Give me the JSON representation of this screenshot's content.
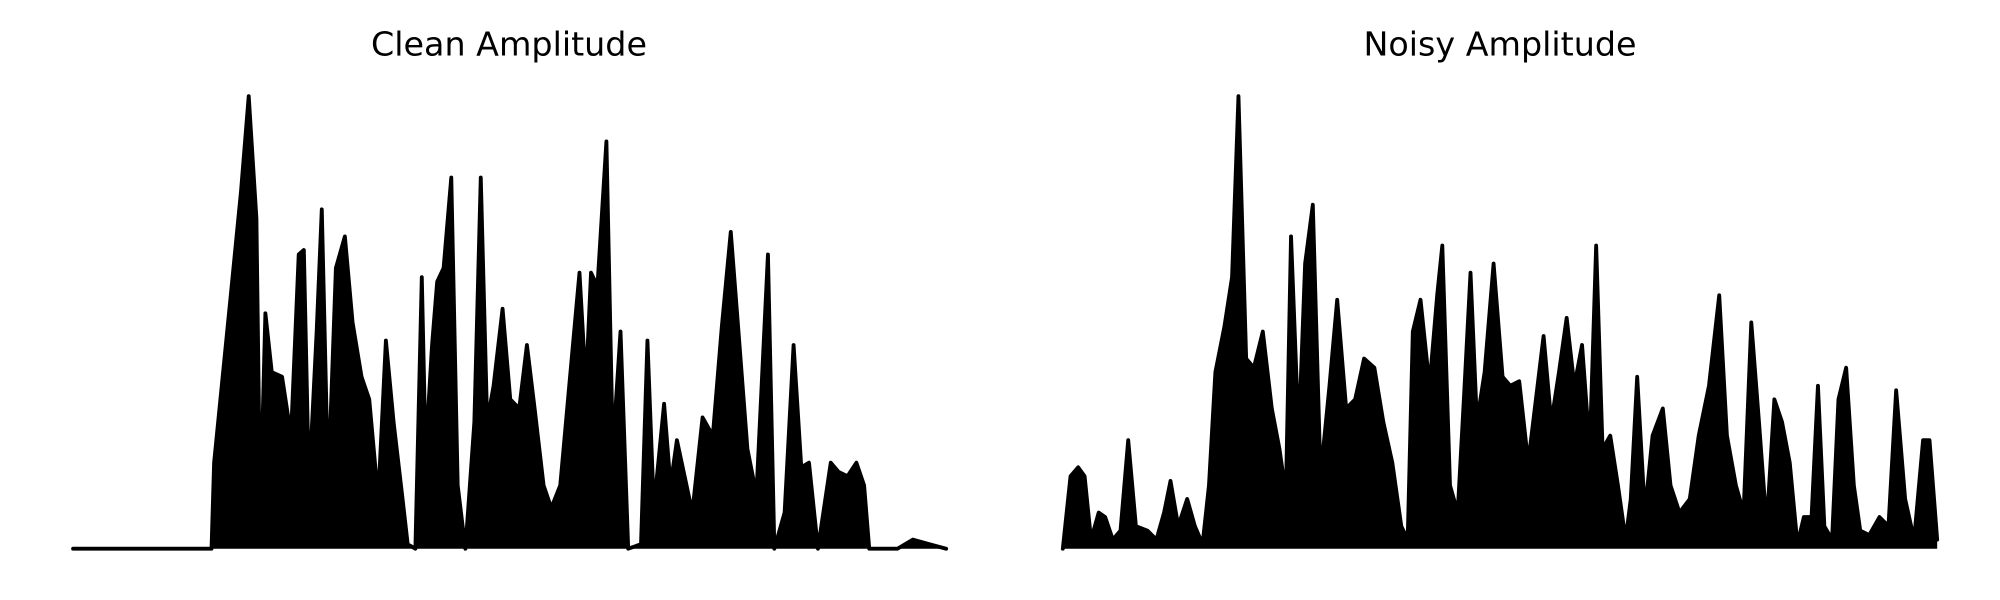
{
  "chart_data": [
    {
      "type": "area",
      "title": "Clean Amplitude",
      "color": "#000000",
      "xlim": [
        0,
        681
      ],
      "ylim": [
        0,
        1
      ],
      "x": [
        0,
        108,
        110,
        123,
        131,
        137,
        143,
        146,
        150,
        155,
        163,
        170,
        176,
        180,
        184,
        190,
        194,
        199,
        205,
        212,
        218,
        225,
        231,
        238,
        244,
        250,
        257,
        261,
        267,
        272,
        275,
        280,
        284,
        289,
        295,
        300,
        306,
        313,
        318,
        323,
        328,
        335,
        341,
        348,
        354,
        360,
        367,
        373,
        380,
        387,
        395,
        400,
        404,
        409,
        416,
        421,
        427,
        433,
        443,
        448,
        453,
        461,
        466,
        471,
        477,
        483,
        491,
        499,
        506,
        513,
        519,
        526,
        533,
        542,
        547,
        555,
        562,
        568,
        574,
        581,
        591,
        597,
        604,
        611,
        617,
        621,
        643,
        655,
        668,
        681
      ],
      "values": [
        0,
        0,
        0.19,
        0.56,
        0.79,
        1,
        0.73,
        0.08,
        0.52,
        0.39,
        0.38,
        0.25,
        0.65,
        0.66,
        0.14,
        0.48,
        0.75,
        0.14,
        0.62,
        0.69,
        0.5,
        0.38,
        0.33,
        0.11,
        0.46,
        0.28,
        0.11,
        0.01,
        0,
        0.6,
        0.21,
        0.45,
        0.59,
        0.62,
        0.82,
        0.14,
        0,
        0.28,
        0.82,
        0.28,
        0.36,
        0.53,
        0.33,
        0.31,
        0.45,
        0.31,
        0.14,
        0.09,
        0.14,
        0.36,
        0.61,
        0.36,
        0.61,
        0.58,
        0.9,
        0.22,
        0.48,
        0,
        0.01,
        0.46,
        0.09,
        0.32,
        0.14,
        0.24,
        0.16,
        0.08,
        0.29,
        0.25,
        0.49,
        0.7,
        0.48,
        0.22,
        0.12,
        0.65,
        0,
        0.08,
        0.45,
        0.18,
        0.19,
        0,
        0.19,
        0.17,
        0.16,
        0.19,
        0.14,
        0,
        0,
        0.02,
        0.01,
        0
      ]
    },
    {
      "type": "area",
      "title": "Noisy Amplitude",
      "color": "#000000",
      "xlim": [
        0,
        682
      ],
      "ylim": [
        0,
        1
      ],
      "x": [
        0,
        6,
        12,
        17,
        22,
        28,
        33,
        39,
        45,
        51,
        57,
        66,
        73,
        79,
        84,
        90,
        97,
        103,
        109,
        114,
        119,
        126,
        132,
        137,
        143,
        149,
        156,
        163,
        169,
        174,
        178,
        184,
        189,
        195,
        201,
        208,
        214,
        221,
        228,
        235,
        243,
        250,
        257,
        264,
        269,
        273,
        279,
        286,
        292,
        296,
        302,
        308,
        313,
        318,
        323,
        329,
        336,
        343,
        349,
        356,
        363,
        369,
        375,
        381,
        387,
        393,
        399,
        405,
        411,
        416,
        421,
        427,
        433,
        439,
        443,
        448,
        454,
        460,
        468,
        474,
        481,
        489,
        496,
        504,
        512,
        518,
        525,
        531,
        537,
        543,
        549,
        555,
        561,
        567,
        573,
        578,
        584,
        589,
        594,
        600,
        605,
        611,
        617,
        622,
        629,
        637,
        644,
        650,
        657,
        664,
        671,
        676,
        682
      ],
      "values": [
        0,
        0.16,
        0.18,
        0.16,
        0.02,
        0.08,
        0.07,
        0.02,
        0.04,
        0.24,
        0.05,
        0.04,
        0.02,
        0.08,
        0.15,
        0.05,
        0.11,
        0.05,
        0.01,
        0.14,
        0.39,
        0.49,
        0.6,
        1,
        0.42,
        0.4,
        0.48,
        0.31,
        0.22,
        0.12,
        0.69,
        0.25,
        0.63,
        0.76,
        0.16,
        0.36,
        0.55,
        0.31,
        0.33,
        0.42,
        0.4,
        0.28,
        0.19,
        0.05,
        0.02,
        0.48,
        0.55,
        0.36,
        0.56,
        0.67,
        0.14,
        0.08,
        0.34,
        0.61,
        0.28,
        0.39,
        0.63,
        0.38,
        0.36,
        0.37,
        0.19,
        0.33,
        0.47,
        0.28,
        0.39,
        0.51,
        0.36,
        0.45,
        0.22,
        0.67,
        0.22,
        0.25,
        0.14,
        0.02,
        0.11,
        0.38,
        0.08,
        0.25,
        0.31,
        0.14,
        0.08,
        0.11,
        0.25,
        0.36,
        0.56,
        0.25,
        0.14,
        0.08,
        0.5,
        0.28,
        0.05,
        0.33,
        0.28,
        0.19,
        0.01,
        0.07,
        0.07,
        0.36,
        0.05,
        0.02,
        0.33,
        0.4,
        0.14,
        0.04,
        0.03,
        0.07,
        0.05,
        0.35,
        0.11,
        0.02,
        0.24,
        0.24,
        0.02
      ]
    }
  ]
}
